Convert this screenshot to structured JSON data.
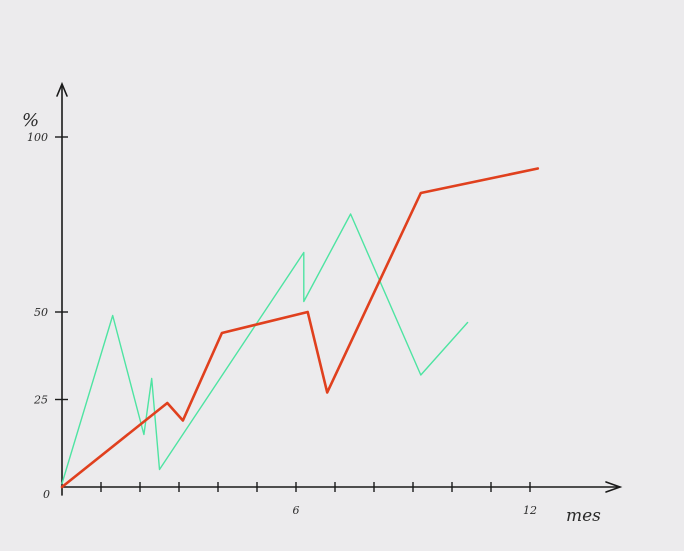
{
  "chart_data": {
    "type": "line",
    "ylabel": "%",
    "xlabel": "mes",
    "xlim": [
      0,
      13.5
    ],
    "ylim": [
      0,
      115
    ],
    "x_ticks": [
      1,
      2,
      3,
      4,
      5,
      6,
      7,
      8,
      9,
      10,
      11,
      12
    ],
    "x_tick_labels": [
      {
        "x": 6,
        "label": "6"
      },
      {
        "x": 12,
        "label": "12"
      }
    ],
    "y_ticks": [
      {
        "y": 0,
        "label": "0"
      },
      {
        "y": 25,
        "label": "25"
      },
      {
        "y": 50,
        "label": "50"
      },
      {
        "y": 100,
        "label": "100"
      }
    ],
    "series": [
      {
        "color": "#e0401e",
        "stroke_width": 2.6,
        "points": [
          [
            0,
            0
          ],
          [
            2.7,
            24
          ],
          [
            3.1,
            19
          ],
          [
            4.1,
            44
          ],
          [
            6.3,
            50
          ],
          [
            6.8,
            27
          ],
          [
            9.2,
            84
          ],
          [
            12.2,
            91
          ]
        ]
      },
      {
        "color": "#4ee4a2",
        "stroke_width": 1.4,
        "points": [
          [
            0,
            1
          ],
          [
            1.3,
            49
          ],
          [
            2.1,
            15
          ],
          [
            2.3,
            31
          ],
          [
            2.5,
            5
          ],
          [
            6.2,
            67
          ],
          [
            6.2,
            53
          ],
          [
            7.4,
            78
          ],
          [
            9.2,
            32
          ],
          [
            10.4,
            47
          ]
        ]
      }
    ]
  }
}
